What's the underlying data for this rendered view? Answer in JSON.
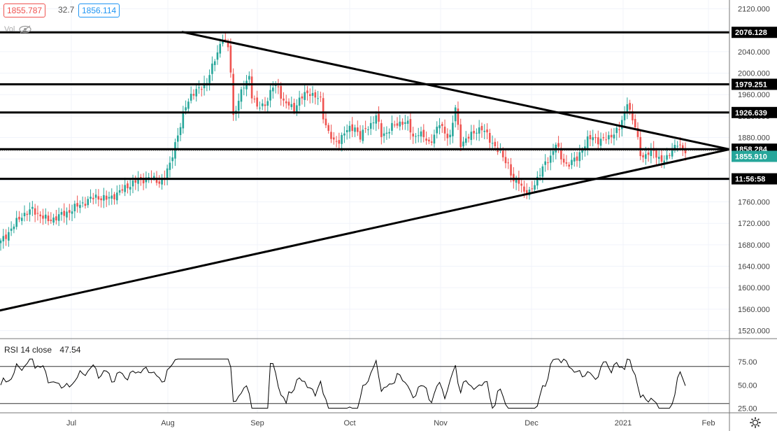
{
  "header": {
    "bid": "1855.787",
    "spread": "32.7",
    "ask": "1856.114",
    "volume_label": "Vol"
  },
  "icons": {
    "visibility": "eye-off-icon",
    "settings": "gear-icon"
  },
  "colors": {
    "up": "#26a69a",
    "down": "#ef5350",
    "line": "#000000",
    "grid": "#f0f3fa",
    "axis_text": "#444444",
    "price_tag": "#26a69a"
  },
  "rsi": {
    "label": "RSI 14 close",
    "value": "47.54",
    "levels": [
      70,
      30
    ],
    "ticks": [
      "75.00",
      "50.00",
      "25.00"
    ]
  },
  "chart_data": {
    "type": "candlestick",
    "instrument_hint": "XAU/USD daily",
    "x_ticks": [
      "Jul",
      "Aug",
      "Sep",
      "Oct",
      "Nov",
      "Dec",
      "2021",
      "Feb"
    ],
    "y_ticks": [
      "2120.000",
      "2080.000",
      "2040.000",
      "2000.000",
      "1960.000",
      "1920.000",
      "1880.000",
      "1840.000",
      "1800.000",
      "1760.000",
      "1720.000",
      "1680.000",
      "1640.000",
      "1600.000",
      "1560.000",
      "1520.000"
    ],
    "ylim": [
      1505,
      2126
    ],
    "horizontal_levels": [
      {
        "label": "2076.128",
        "value": 2076.128
      },
      {
        "label": "1979.251",
        "value": 1979.251
      },
      {
        "label": "1926.639",
        "value": 1926.639
      },
      {
        "label": "1858.284",
        "value": 1858.284
      },
      {
        "value": 1803
      }
    ],
    "current_price": {
      "label": "1855.910",
      "value": 1855.91
    },
    "countdown": "11:56:58",
    "trendlines": [
      {
        "from": {
          "x": "Aug",
          "price": 2077
        },
        "to": {
          "x": "Feb",
          "price": 1858
        }
      },
      {
        "from": {
          "x": "Jun",
          "price": 1549
        },
        "to": {
          "x": "Feb",
          "price": 1858
        }
      }
    ],
    "anchors": [
      [
        0,
        1685
      ],
      [
        8,
        1735
      ],
      [
        12,
        1745
      ],
      [
        18,
        1725
      ],
      [
        25,
        1740
      ],
      [
        30,
        1755
      ],
      [
        36,
        1770
      ],
      [
        40,
        1765
      ],
      [
        44,
        1775
      ],
      [
        48,
        1790
      ],
      [
        52,
        1800
      ],
      [
        56,
        1805
      ],
      [
        60,
        1798
      ],
      [
        62,
        1805
      ],
      [
        64,
        1830
      ],
      [
        66,
        1870
      ],
      [
        68,
        1900
      ],
      [
        70,
        1940
      ],
      [
        72,
        1960
      ],
      [
        74,
        1965
      ],
      [
        76,
        1975
      ],
      [
        78,
        1985
      ],
      [
        80,
        2010
      ],
      [
        82,
        2040
      ],
      [
        84,
        2068
      ],
      [
        86,
        2045
      ],
      [
        87,
        2005
      ],
      [
        88,
        1920
      ],
      [
        90,
        1950
      ],
      [
        92,
        1975
      ],
      [
        94,
        1995
      ],
      [
        95,
        1960
      ],
      [
        97,
        1935
      ],
      [
        99,
        1940
      ],
      [
        101,
        1950
      ],
      [
        103,
        1975
      ],
      [
        105,
        1975
      ],
      [
        107,
        1945
      ],
      [
        109,
        1940
      ],
      [
        111,
        1935
      ],
      [
        113,
        1950
      ],
      [
        115,
        1960
      ],
      [
        117,
        1965
      ],
      [
        119,
        1955
      ],
      [
        121,
        1950
      ],
      [
        122,
        1920
      ],
      [
        124,
        1890
      ],
      [
        126,
        1870
      ],
      [
        128,
        1875
      ],
      [
        130,
        1890
      ],
      [
        132,
        1895
      ],
      [
        134,
        1900
      ],
      [
        136,
        1880
      ],
      [
        138,
        1895
      ],
      [
        140,
        1905
      ],
      [
        142,
        1920
      ],
      [
        144,
        1885
      ],
      [
        146,
        1890
      ],
      [
        148,
        1900
      ],
      [
        150,
        1905
      ],
      [
        152,
        1910
      ],
      [
        154,
        1905
      ],
      [
        156,
        1880
      ],
      [
        158,
        1890
      ],
      [
        160,
        1880
      ],
      [
        162,
        1870
      ],
      [
        164,
        1885
      ],
      [
        166,
        1905
      ],
      [
        168,
        1890
      ],
      [
        170,
        1880
      ],
      [
        172,
        1935
      ],
      [
        173,
        1900
      ],
      [
        174,
        1870
      ],
      [
        176,
        1875
      ],
      [
        178,
        1885
      ],
      [
        180,
        1895
      ],
      [
        182,
        1895
      ],
      [
        184,
        1885
      ],
      [
        186,
        1870
      ],
      [
        188,
        1855
      ],
      [
        190,
        1845
      ],
      [
        192,
        1830
      ],
      [
        194,
        1795
      ],
      [
        196,
        1800
      ],
      [
        198,
        1780
      ],
      [
        200,
        1775
      ],
      [
        202,
        1795
      ],
      [
        204,
        1815
      ],
      [
        206,
        1830
      ],
      [
        208,
        1845
      ],
      [
        210,
        1870
      ],
      [
        212,
        1840
      ],
      [
        214,
        1830
      ],
      [
        216,
        1835
      ],
      [
        218,
        1840
      ],
      [
        220,
        1860
      ],
      [
        222,
        1875
      ],
      [
        224,
        1880
      ],
      [
        226,
        1875
      ],
      [
        228,
        1875
      ],
      [
        230,
        1880
      ],
      [
        232,
        1890
      ],
      [
        234,
        1895
      ],
      [
        236,
        1925
      ],
      [
        237,
        1950
      ],
      [
        238,
        1930
      ],
      [
        239,
        1910
      ],
      [
        240,
        1900
      ],
      [
        242,
        1850
      ],
      [
        244,
        1845
      ],
      [
        246,
        1855
      ],
      [
        248,
        1850
      ],
      [
        250,
        1835
      ],
      [
        252,
        1840
      ],
      [
        254,
        1860
      ],
      [
        256,
        1868
      ],
      [
        258,
        1855
      ],
      [
        259,
        1857
      ]
    ]
  }
}
